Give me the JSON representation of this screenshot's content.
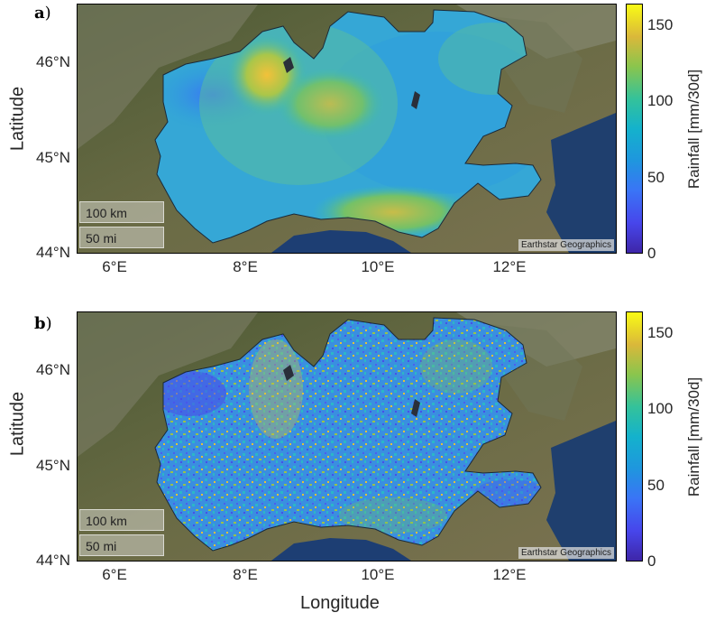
{
  "panels": [
    {
      "label": "a",
      "paren": ")",
      "ylabel": "Latitude",
      "yticks": [
        "46°N",
        "45°N",
        "44°N"
      ],
      "xticks": [
        "6°E",
        "8°E",
        "10°E",
        "12°E"
      ],
      "scale_km": "100 km",
      "scale_mi": "50 mi",
      "attribution": "Earthstar Geographics",
      "colorbar_label": "Rainfall [mm/30d]",
      "colorbar_ticks": [
        "150",
        "100",
        "50",
        "0"
      ]
    },
    {
      "label": "b",
      "paren": ")",
      "ylabel": "Latitude",
      "yticks": [
        "46°N",
        "45°N",
        "44°N"
      ],
      "xticks": [
        "6°E",
        "8°E",
        "10°E",
        "12°E"
      ],
      "scale_km": "100 km",
      "scale_mi": "50 mi",
      "attribution": "Earthstar Geographics",
      "colorbar_label": "Rainfall [mm/30d]",
      "colorbar_ticks": [
        "150",
        "100",
        "50",
        "0"
      ]
    }
  ],
  "xaxis_title": "Longitude",
  "colors": {
    "colormap": [
      "#3e26a8",
      "#4746eb",
      "#3a74f6",
      "#1f96de",
      "#14b2cc",
      "#34c29a",
      "#8ac54d",
      "#dab83a",
      "#f9fb15"
    ],
    "sea": "#1f3f6e",
    "land": "#5b6b3a",
    "mountains": "#8a8a78"
  },
  "map_layers": [
    "satellite-basemap",
    "rainfall-field",
    "region-outline"
  ]
}
